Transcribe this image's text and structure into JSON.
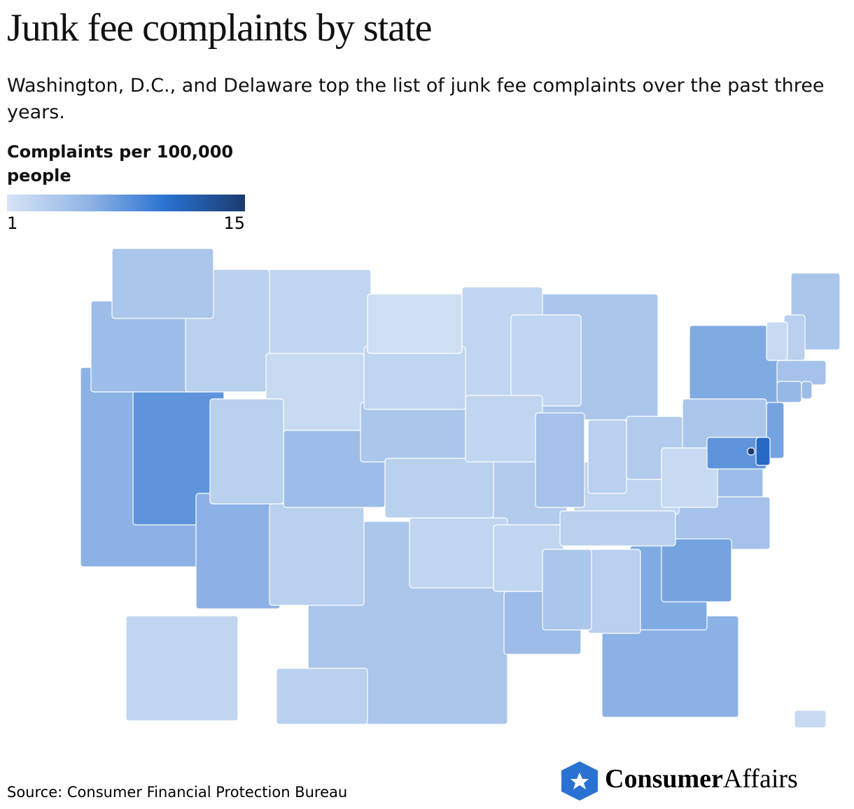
{
  "chart_data": {
    "type": "choropleth",
    "title": "Junk fee complaints by state",
    "subtitle": "Washington, D.C., and Delaware top the list of junk fee complaints over the past three years.",
    "legend_title": "Complaints per 100,000 people",
    "vlim": [
      1,
      15
    ],
    "colorbar_ticks": [
      1,
      15
    ],
    "colors": [
      "#d6e4f5",
      "#93b6e6",
      "#2a72d1",
      "#1c3b6e"
    ],
    "values": [
      4,
      5,
      6,
      8,
      3,
      2.5,
      2,
      3,
      5,
      6,
      3,
      1.5,
      2.5,
      4,
      3,
      2.5,
      4,
      2.5,
      2.5,
      3.5,
      2.5,
      5,
      2.5,
      4.5,
      4,
      3,
      3.5,
      2.5,
      3,
      4,
      3,
      6.5,
      6,
      7,
      4.5,
      5,
      2,
      4,
      6.5,
      7,
      8,
      11,
      15,
      5.5,
      5,
      4.5,
      2,
      3,
      4,
      2.5,
      3,
      2
    ],
    "source": "Source: Consumer Financial Protection Bureau",
    "logo": {
      "bold": "Consumer",
      "regular": "Affairs"
    }
  }
}
